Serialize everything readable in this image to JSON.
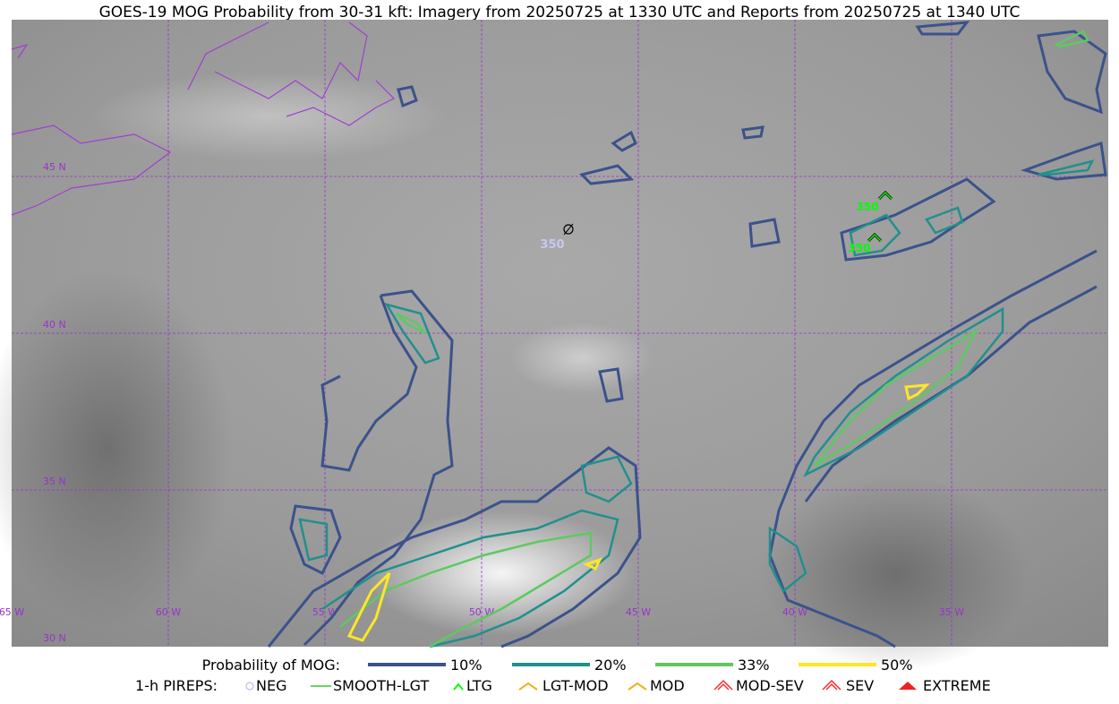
{
  "title": "GOES-19 MOG Probability from 30-31 kft: Imagery from 20250725 at 1330 UTC and Reports from 20250725 at 1340 UTC",
  "map": {
    "lat_labels": [
      "45 N",
      "40 N",
      "35 N",
      "30 N"
    ],
    "lon_labels": [
      "65 W",
      "60 W",
      "55 W",
      "50 W",
      "45 W",
      "40 W",
      "35 W"
    ],
    "reports": [
      "350",
      "350",
      "350"
    ]
  },
  "legend": {
    "probability": {
      "label": "Probability of MOG:",
      "items": [
        "10%",
        "20%",
        "33%",
        "50%"
      ]
    },
    "pireps": {
      "label": "1-h PIREPS:",
      "items": [
        "NEG",
        "SMOOTH-LGT",
        "LTG",
        "LGT-MOD",
        "MOD",
        "MOD-SEV",
        "SEV",
        "EXTREME"
      ]
    }
  }
}
